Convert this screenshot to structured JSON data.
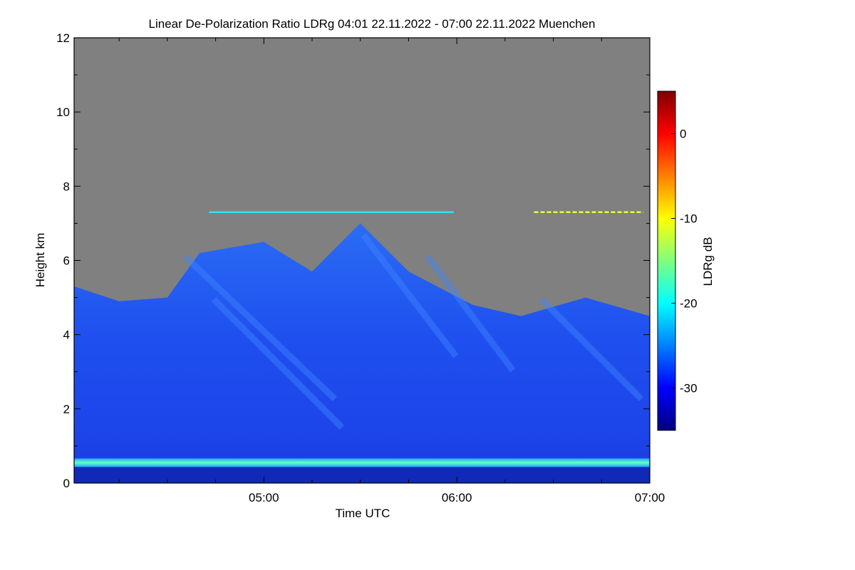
{
  "chart_data": {
    "type": "heatmap",
    "title": "Linear De-Polarization Ratio LDRg   04:01 22.11.2022 - 07:00 22.11.2022 Muenchen",
    "xlabel": "Time UTC",
    "ylabel": "Height km",
    "x_range": [
      "04:01",
      "07:00"
    ],
    "x_ticks": [
      "05:00",
      "06:00",
      "07:00"
    ],
    "y_range": [
      0,
      12
    ],
    "y_ticks": [
      0,
      2,
      4,
      6,
      8,
      10,
      12
    ],
    "colorbar": {
      "label": "LDRg dB",
      "range": [
        -35,
        5
      ],
      "ticks": [
        -30,
        -20,
        -10,
        0
      ],
      "colormap": "jet"
    },
    "no_signal_color": "#808080",
    "features": {
      "melting_layer_km": 0.55,
      "thin_layer_km": 7.3,
      "cloud_top_km": [
        {
          "time": "04:01",
          "top": 5.3
        },
        {
          "time": "04:15",
          "top": 4.9
        },
        {
          "time": "04:30",
          "top": 5.0
        },
        {
          "time": "04:40",
          "top": 6.2
        },
        {
          "time": "05:00",
          "top": 6.5
        },
        {
          "time": "05:15",
          "top": 5.7
        },
        {
          "time": "05:30",
          "top": 7.0
        },
        {
          "time": "05:45",
          "top": 5.7
        },
        {
          "time": "06:05",
          "top": 4.8
        },
        {
          "time": "06:20",
          "top": 4.5
        },
        {
          "time": "06:40",
          "top": 5.0
        },
        {
          "time": "07:00",
          "top": 4.5
        }
      ]
    }
  }
}
